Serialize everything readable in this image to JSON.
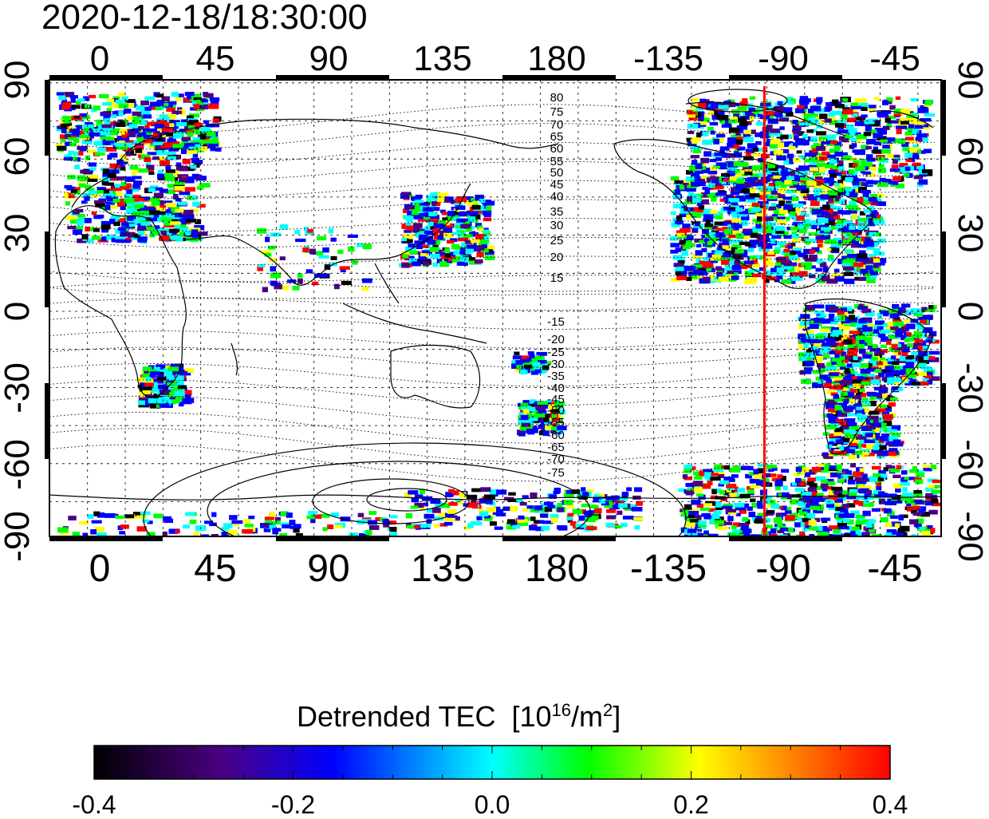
{
  "timestamp": "2020-12-18/18:30:00",
  "map": {
    "lon_tick_labels": [
      "0",
      "45",
      "90",
      "135",
      "180",
      "-135",
      "-90",
      "-45"
    ],
    "lat_tick_labels": [
      "90",
      "60",
      "30",
      "0",
      "-30",
      "-60",
      "-90"
    ],
    "magnetic_latitude_labels_north": [
      "80",
      "75",
      "70",
      "65",
      "60",
      "55",
      "50",
      "45",
      "40",
      "35",
      "30",
      "25",
      "20",
      "15"
    ],
    "magnetic_latitude_labels_south": [
      "-15",
      "-20",
      "-25",
      "-30",
      "-35",
      "-40",
      "-45",
      "-50",
      "-55",
      "-60",
      "-65",
      "-70",
      "-75"
    ],
    "marker_longitude": -96,
    "marker_color": "#ff0000"
  },
  "colorbar": {
    "title": "Detrended TEC",
    "unit_prefix": "[10",
    "unit_exp1": "16",
    "unit_mid": "/m",
    "unit_exp2": "2",
    "unit_suffix": "]",
    "tick_labels": [
      "-0.4",
      "-0.2",
      "0.0",
      "0.2",
      "0.4"
    ],
    "range": [
      -0.4,
      0.4
    ],
    "colors": [
      "#000000",
      "#4b0082",
      "#0000ff",
      "#00ffff",
      "#00ff00",
      "#ffff00",
      "#ff8000",
      "#ff0000"
    ]
  }
}
